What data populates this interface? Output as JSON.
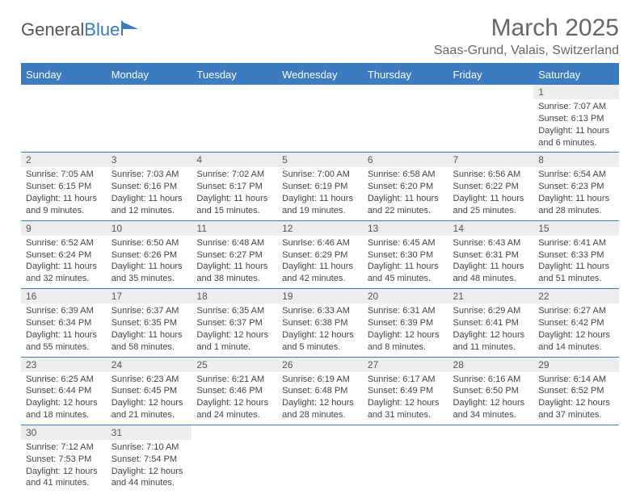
{
  "logo": {
    "text1": "General",
    "text2": "Blue"
  },
  "title": "March 2025",
  "location": "Saas-Grund, Valais, Switzerland",
  "columns": [
    "Sunday",
    "Monday",
    "Tuesday",
    "Wednesday",
    "Thursday",
    "Friday",
    "Saturday"
  ],
  "colors": {
    "header_bg": "#3b7bbf",
    "header_fg": "#ffffff",
    "daynum_bg": "#ededed",
    "border": "#3b7bbf",
    "text": "#444444"
  },
  "weeks": [
    [
      {
        "n": "",
        "lines": []
      },
      {
        "n": "",
        "lines": []
      },
      {
        "n": "",
        "lines": []
      },
      {
        "n": "",
        "lines": []
      },
      {
        "n": "",
        "lines": []
      },
      {
        "n": "",
        "lines": []
      },
      {
        "n": "1",
        "lines": [
          "Sunrise: 7:07 AM",
          "Sunset: 6:13 PM",
          "Daylight: 11 hours",
          "and 6 minutes."
        ]
      }
    ],
    [
      {
        "n": "2",
        "lines": [
          "Sunrise: 7:05 AM",
          "Sunset: 6:15 PM",
          "Daylight: 11 hours",
          "and 9 minutes."
        ]
      },
      {
        "n": "3",
        "lines": [
          "Sunrise: 7:03 AM",
          "Sunset: 6:16 PM",
          "Daylight: 11 hours",
          "and 12 minutes."
        ]
      },
      {
        "n": "4",
        "lines": [
          "Sunrise: 7:02 AM",
          "Sunset: 6:17 PM",
          "Daylight: 11 hours",
          "and 15 minutes."
        ]
      },
      {
        "n": "5",
        "lines": [
          "Sunrise: 7:00 AM",
          "Sunset: 6:19 PM",
          "Daylight: 11 hours",
          "and 19 minutes."
        ]
      },
      {
        "n": "6",
        "lines": [
          "Sunrise: 6:58 AM",
          "Sunset: 6:20 PM",
          "Daylight: 11 hours",
          "and 22 minutes."
        ]
      },
      {
        "n": "7",
        "lines": [
          "Sunrise: 6:56 AM",
          "Sunset: 6:22 PM",
          "Daylight: 11 hours",
          "and 25 minutes."
        ]
      },
      {
        "n": "8",
        "lines": [
          "Sunrise: 6:54 AM",
          "Sunset: 6:23 PM",
          "Daylight: 11 hours",
          "and 28 minutes."
        ]
      }
    ],
    [
      {
        "n": "9",
        "lines": [
          "Sunrise: 6:52 AM",
          "Sunset: 6:24 PM",
          "Daylight: 11 hours",
          "and 32 minutes."
        ]
      },
      {
        "n": "10",
        "lines": [
          "Sunrise: 6:50 AM",
          "Sunset: 6:26 PM",
          "Daylight: 11 hours",
          "and 35 minutes."
        ]
      },
      {
        "n": "11",
        "lines": [
          "Sunrise: 6:48 AM",
          "Sunset: 6:27 PM",
          "Daylight: 11 hours",
          "and 38 minutes."
        ]
      },
      {
        "n": "12",
        "lines": [
          "Sunrise: 6:46 AM",
          "Sunset: 6:29 PM",
          "Daylight: 11 hours",
          "and 42 minutes."
        ]
      },
      {
        "n": "13",
        "lines": [
          "Sunrise: 6:45 AM",
          "Sunset: 6:30 PM",
          "Daylight: 11 hours",
          "and 45 minutes."
        ]
      },
      {
        "n": "14",
        "lines": [
          "Sunrise: 6:43 AM",
          "Sunset: 6:31 PM",
          "Daylight: 11 hours",
          "and 48 minutes."
        ]
      },
      {
        "n": "15",
        "lines": [
          "Sunrise: 6:41 AM",
          "Sunset: 6:33 PM",
          "Daylight: 11 hours",
          "and 51 minutes."
        ]
      }
    ],
    [
      {
        "n": "16",
        "lines": [
          "Sunrise: 6:39 AM",
          "Sunset: 6:34 PM",
          "Daylight: 11 hours",
          "and 55 minutes."
        ]
      },
      {
        "n": "17",
        "lines": [
          "Sunrise: 6:37 AM",
          "Sunset: 6:35 PM",
          "Daylight: 11 hours",
          "and 58 minutes."
        ]
      },
      {
        "n": "18",
        "lines": [
          "Sunrise: 6:35 AM",
          "Sunset: 6:37 PM",
          "Daylight: 12 hours",
          "and 1 minute."
        ]
      },
      {
        "n": "19",
        "lines": [
          "Sunrise: 6:33 AM",
          "Sunset: 6:38 PM",
          "Daylight: 12 hours",
          "and 5 minutes."
        ]
      },
      {
        "n": "20",
        "lines": [
          "Sunrise: 6:31 AM",
          "Sunset: 6:39 PM",
          "Daylight: 12 hours",
          "and 8 minutes."
        ]
      },
      {
        "n": "21",
        "lines": [
          "Sunrise: 6:29 AM",
          "Sunset: 6:41 PM",
          "Daylight: 12 hours",
          "and 11 minutes."
        ]
      },
      {
        "n": "22",
        "lines": [
          "Sunrise: 6:27 AM",
          "Sunset: 6:42 PM",
          "Daylight: 12 hours",
          "and 14 minutes."
        ]
      }
    ],
    [
      {
        "n": "23",
        "lines": [
          "Sunrise: 6:25 AM",
          "Sunset: 6:44 PM",
          "Daylight: 12 hours",
          "and 18 minutes."
        ]
      },
      {
        "n": "24",
        "lines": [
          "Sunrise: 6:23 AM",
          "Sunset: 6:45 PM",
          "Daylight: 12 hours",
          "and 21 minutes."
        ]
      },
      {
        "n": "25",
        "lines": [
          "Sunrise: 6:21 AM",
          "Sunset: 6:46 PM",
          "Daylight: 12 hours",
          "and 24 minutes."
        ]
      },
      {
        "n": "26",
        "lines": [
          "Sunrise: 6:19 AM",
          "Sunset: 6:48 PM",
          "Daylight: 12 hours",
          "and 28 minutes."
        ]
      },
      {
        "n": "27",
        "lines": [
          "Sunrise: 6:17 AM",
          "Sunset: 6:49 PM",
          "Daylight: 12 hours",
          "and 31 minutes."
        ]
      },
      {
        "n": "28",
        "lines": [
          "Sunrise: 6:16 AM",
          "Sunset: 6:50 PM",
          "Daylight: 12 hours",
          "and 34 minutes."
        ]
      },
      {
        "n": "29",
        "lines": [
          "Sunrise: 6:14 AM",
          "Sunset: 6:52 PM",
          "Daylight: 12 hours",
          "and 37 minutes."
        ]
      }
    ],
    [
      {
        "n": "30",
        "lines": [
          "Sunrise: 7:12 AM",
          "Sunset: 7:53 PM",
          "Daylight: 12 hours",
          "and 41 minutes."
        ]
      },
      {
        "n": "31",
        "lines": [
          "Sunrise: 7:10 AM",
          "Sunset: 7:54 PM",
          "Daylight: 12 hours",
          "and 44 minutes."
        ]
      },
      {
        "n": "",
        "lines": []
      },
      {
        "n": "",
        "lines": []
      },
      {
        "n": "",
        "lines": []
      },
      {
        "n": "",
        "lines": []
      },
      {
        "n": "",
        "lines": []
      }
    ]
  ]
}
